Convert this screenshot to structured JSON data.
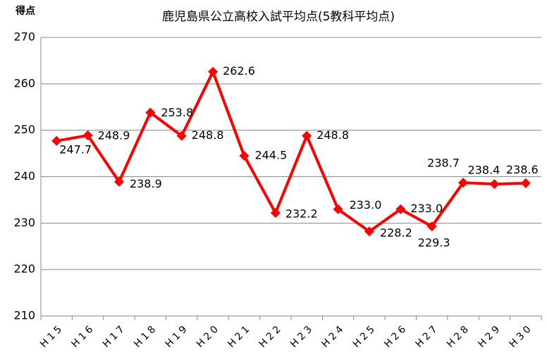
{
  "chart_data": {
    "type": "line",
    "title": "鹿児島県公立高校入試平均点(5教科平均点)",
    "y_label": "得点",
    "categories": [
      "H15",
      "H16",
      "H17",
      "H18",
      "H19",
      "H20",
      "H21",
      "H22",
      "H23",
      "H24",
      "H25",
      "H26",
      "H27",
      "H28",
      "H29",
      "H30"
    ],
    "series": [
      {
        "name": "5教科平均点",
        "color": "#ff0000",
        "values": [
          247.7,
          248.9,
          238.9,
          253.8,
          248.8,
          262.6,
          244.5,
          232.2,
          248.8,
          233.0,
          228.2,
          233.0,
          229.3,
          238.7,
          238.4,
          238.6
        ],
        "value_labels": [
          "247.7",
          "248.9",
          "238.9",
          "253.8",
          "248.8",
          "262.6",
          "244.5",
          "232.2",
          "248.8",
          "233.0",
          "228.2",
          "233.0",
          "229.3",
          "238.7",
          "238.4",
          "238.6"
        ]
      }
    ],
    "ylim": [
      210,
      270
    ],
    "yticks": [
      210,
      220,
      230,
      240,
      250,
      260,
      270
    ],
    "grid": true
  }
}
